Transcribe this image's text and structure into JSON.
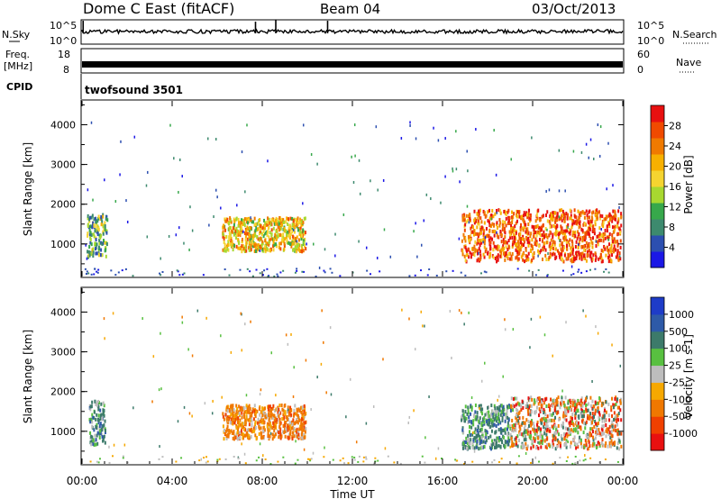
{
  "header": {
    "station": "Dome C East (fitACF)",
    "beam": "Beam 04",
    "date": "03/Oct/2013"
  },
  "strip_nsky": {
    "left_label": "N.Sky",
    "tick_top": "10^5",
    "tick_bottom": "10^0",
    "right_tick_top": "10^5",
    "right_tick_bottom": "10^0",
    "right_label": "N.Search"
  },
  "strip_freq": {
    "left_label_1": "Freq.",
    "left_label_2": "[MHz]",
    "tick_top": "18",
    "tick_bottom": "8",
    "right_tick_top": "60",
    "right_tick_bottom": "0",
    "right_label": "Nave"
  },
  "strip_cpid": {
    "left_label": "CPID",
    "program": "twofsound 3501"
  },
  "time_axis": {
    "label": "Time UT",
    "ticks": [
      "00:00",
      "04:00",
      "08:00",
      "12:00",
      "16:00",
      "20:00",
      "00:00"
    ]
  },
  "chart_data": [
    {
      "type": "heatmap",
      "ylabel": "Slant Range [km]",
      "y_ticks": [
        "1000",
        "2000",
        "3000",
        "4000"
      ],
      "ylim": [
        180,
        4600
      ],
      "colorbar": {
        "label": "Power [dB]",
        "ticks": [
          "4",
          "8",
          "12",
          "16",
          "20",
          "24",
          "28"
        ],
        "range": [
          0,
          32
        ],
        "colors": [
          "#1b17e6",
          "#2c4fb0",
          "#3d8a6e",
          "#37a84b",
          "#a8d830",
          "#f5d430",
          "#f7b000",
          "#f07a00",
          "#f04a00",
          "#e81010"
        ]
      },
      "regions": [
        {
          "t": [
            0.2,
            1.1
          ],
          "r": [
            700,
            1800
          ],
          "level": 0.35
        },
        {
          "t": [
            6.2,
            9.9
          ],
          "r": [
            850,
            1700
          ],
          "level": 0.6
        },
        {
          "t": [
            16.8,
            23.9
          ],
          "r": [
            600,
            1900
          ],
          "level": 0.85
        }
      ]
    },
    {
      "type": "heatmap",
      "ylabel": "Slant Range [km]",
      "y_ticks": [
        "1000",
        "2000",
        "3000",
        "4000"
      ],
      "ylim": [
        180,
        4600
      ],
      "colorbar": {
        "label": "Velocity [m s-1]",
        "ticks": [
          "1000",
          "500",
          "100",
          "25",
          "-25",
          "-100",
          "-500",
          "-1000"
        ],
        "colors": [
          "#1e3cc8",
          "#2e5aa8",
          "#3c7a6a",
          "#58c040",
          "#bdbdbd",
          "#f6a800",
          "#f07800",
          "#f04000",
          "#e81010"
        ]
      },
      "regions": [
        {
          "t": [
            0.3,
            1.0
          ],
          "r": [
            700,
            1800
          ],
          "level": "positive"
        },
        {
          "t": [
            6.2,
            9.9
          ],
          "r": [
            850,
            1700
          ],
          "level": "negative"
        },
        {
          "t": [
            16.8,
            19.0
          ],
          "r": [
            600,
            1700
          ],
          "level": "positive"
        },
        {
          "t": [
            19.0,
            23.9
          ],
          "r": [
            600,
            1900
          ],
          "level": "mixed"
        }
      ]
    }
  ]
}
